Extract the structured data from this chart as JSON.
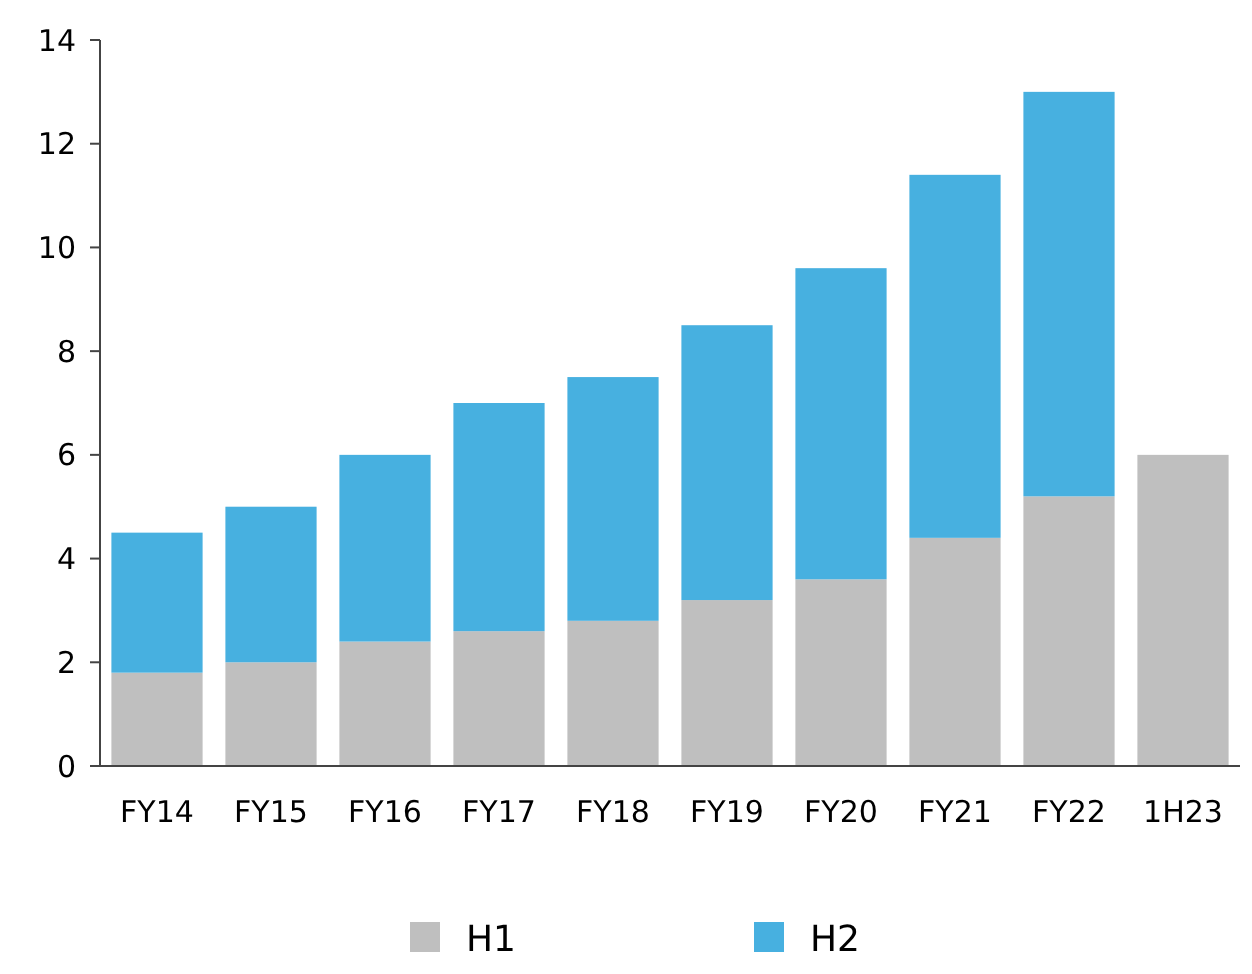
{
  "chart_data": {
    "type": "bar",
    "stacked": true,
    "categories": [
      "FY14",
      "FY15",
      "FY16",
      "FY17",
      "FY18",
      "FY19",
      "FY20",
      "FY21",
      "FY22",
      "1H23"
    ],
    "series": [
      {
        "name": "H1",
        "color": "#bfbfbf",
        "values": [
          1.8,
          2.0,
          2.4,
          2.6,
          2.8,
          3.2,
          3.6,
          4.4,
          5.2,
          6.0
        ]
      },
      {
        "name": "H2",
        "color": "#47b0e0",
        "values": [
          2.7,
          3.0,
          3.6,
          4.4,
          4.7,
          5.3,
          6.0,
          7.0,
          7.8,
          null
        ]
      }
    ],
    "ylim": [
      0,
      14
    ],
    "yticks": [
      0,
      2,
      4,
      6,
      8,
      10,
      12,
      14
    ],
    "grid": false,
    "legend": "bottom"
  }
}
